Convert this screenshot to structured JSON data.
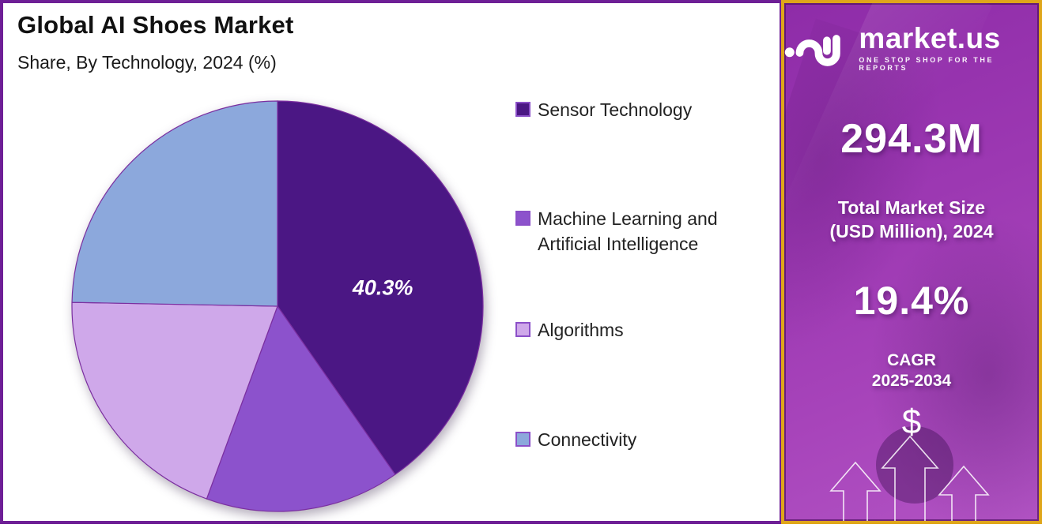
{
  "header": {
    "title": "Global AI Shoes Market",
    "subtitle": "Share, By Technology, 2024 (%)"
  },
  "chart_data": {
    "type": "pie",
    "title": "Global AI Shoes Market",
    "subtitle": "Share, By Technology, 2024 (%)",
    "units": "percent share",
    "start_angle_deg": 0,
    "direction": "clockwise",
    "legend_position": "right",
    "slices": [
      {
        "label": "Sensor Technology",
        "value": 40.3,
        "color": "#4b1784",
        "data_label": "40.3%",
        "label_angle_deg": 80,
        "label_dist_frac": 0.52
      },
      {
        "label": "Machine Learning and Artificial Intelligence",
        "value": 15.3,
        "color": "#8c52cc",
        "data_label": ""
      },
      {
        "label": "Algorithms",
        "value": 19.7,
        "color": "#cfa8ea",
        "data_label": ""
      },
      {
        "label": "Connectivity",
        "value": 24.7,
        "color": "#8ca8dc",
        "data_label": ""
      }
    ],
    "note": "Only the 40.3% slice carries a printed data label; other values estimated from slice angles."
  },
  "legend": {
    "items": [
      {
        "label": "Sensor Technology",
        "lines": [
          "Sensor Technology"
        ],
        "color": "#4b1784"
      },
      {
        "label": "Machine Learning and Artificial Intelligence",
        "lines": [
          "Machine Learning and",
          "Artificial Intelligence"
        ],
        "color": "#8c52cc"
      },
      {
        "label": "Algorithms",
        "lines": [
          "Algorithms"
        ],
        "color": "#cfa8ea"
      },
      {
        "label": "Connectivity",
        "lines": [
          "Connectivity"
        ],
        "color": "#8ca8dc"
      }
    ]
  },
  "sidebar": {
    "brand": "market.us",
    "tagline": "ONE STOP SHOP FOR THE REPORTS",
    "market_size_value": "294.3M",
    "market_size_label_line1": "Total Market Size",
    "market_size_label_line2": "(USD Million), 2024",
    "cagr_value": "19.4%",
    "cagr_label_line1": "CAGR",
    "cagr_label_line2": "2025-2034",
    "dollar_symbol": "$",
    "colors": {
      "panel_top": "#8e2ca8",
      "panel_bottom": "#b153c3",
      "gold_border": "#dfa61a",
      "outer_border": "#6e1f96"
    }
  }
}
